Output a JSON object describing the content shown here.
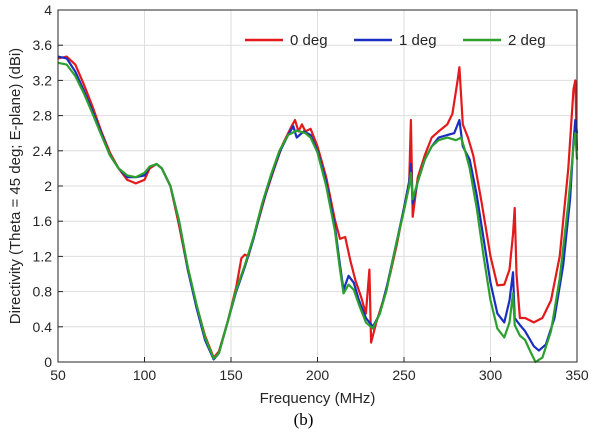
{
  "caption": "(b)",
  "chart_data": {
    "type": "line",
    "xlabel": "Frequency (MHz)",
    "ylabel": "Directivity (Theta = 45 deg; E-plane) (dBi)",
    "xlim": [
      50,
      350
    ],
    "ylim": [
      0,
      4
    ],
    "xticks": [
      50,
      100,
      150,
      200,
      250,
      300,
      350
    ],
    "yticks": [
      0,
      0.4,
      0.8,
      1.2,
      1.6,
      2,
      2.4,
      2.8,
      3.2,
      3.6,
      4
    ],
    "grid": true,
    "legend_position": "top-right",
    "series": [
      {
        "name": "0 deg",
        "color": "#e31a1c",
        "points": [
          [
            50,
            3.45
          ],
          [
            55,
            3.47
          ],
          [
            60,
            3.38
          ],
          [
            65,
            3.15
          ],
          [
            70,
            2.9
          ],
          [
            75,
            2.62
          ],
          [
            80,
            2.38
          ],
          [
            85,
            2.2
          ],
          [
            90,
            2.07
          ],
          [
            95,
            2.03
          ],
          [
            100,
            2.07
          ],
          [
            103,
            2.2
          ],
          [
            107,
            2.25
          ],
          [
            110,
            2.2
          ],
          [
            115,
            2.0
          ],
          [
            120,
            1.55
          ],
          [
            125,
            1.05
          ],
          [
            130,
            0.65
          ],
          [
            135,
            0.3
          ],
          [
            140,
            0.05
          ],
          [
            143,
            0.12
          ],
          [
            148,
            0.45
          ],
          [
            153,
            0.85
          ],
          [
            156,
            1.18
          ],
          [
            158,
            1.22
          ],
          [
            160,
            1.2
          ],
          [
            165,
            1.55
          ],
          [
            170,
            1.9
          ],
          [
            175,
            2.2
          ],
          [
            180,
            2.48
          ],
          [
            185,
            2.68
          ],
          [
            187,
            2.75
          ],
          [
            189,
            2.62
          ],
          [
            191,
            2.7
          ],
          [
            193,
            2.62
          ],
          [
            196,
            2.65
          ],
          [
            200,
            2.45
          ],
          [
            205,
            2.1
          ],
          [
            210,
            1.62
          ],
          [
            213,
            1.4
          ],
          [
            216,
            1.42
          ],
          [
            219,
            1.15
          ],
          [
            222,
            0.92
          ],
          [
            225,
            0.75
          ],
          [
            228,
            0.55
          ],
          [
            230,
            1.05
          ],
          [
            231,
            0.22
          ],
          [
            234,
            0.45
          ],
          [
            238,
            0.7
          ],
          [
            242,
            1.0
          ],
          [
            246,
            1.35
          ],
          [
            250,
            1.75
          ],
          [
            253,
            2.05
          ],
          [
            254,
            2.75
          ],
          [
            255,
            1.65
          ],
          [
            258,
            2.1
          ],
          [
            262,
            2.35
          ],
          [
            266,
            2.55
          ],
          [
            270,
            2.62
          ],
          [
            275,
            2.7
          ],
          [
            278,
            2.82
          ],
          [
            281,
            3.2
          ],
          [
            282,
            3.35
          ],
          [
            284,
            2.7
          ],
          [
            287,
            2.55
          ],
          [
            290,
            2.35
          ],
          [
            295,
            1.8
          ],
          [
            300,
            1.2
          ],
          [
            304,
            0.87
          ],
          [
            308,
            0.88
          ],
          [
            311,
            1.05
          ],
          [
            313,
            1.45
          ],
          [
            314,
            1.75
          ],
          [
            315,
            1.0
          ],
          [
            317,
            0.5
          ],
          [
            320,
            0.5
          ],
          [
            325,
            0.45
          ],
          [
            330,
            0.5
          ],
          [
            335,
            0.7
          ],
          [
            340,
            1.2
          ],
          [
            345,
            2.2
          ],
          [
            348,
            3.1
          ],
          [
            349,
            3.2
          ],
          [
            350,
            2.4
          ]
        ]
      },
      {
        "name": "1 deg",
        "color": "#1a2fbf",
        "points": [
          [
            50,
            3.47
          ],
          [
            55,
            3.45
          ],
          [
            60,
            3.3
          ],
          [
            65,
            3.08
          ],
          [
            70,
            2.85
          ],
          [
            75,
            2.6
          ],
          [
            80,
            2.35
          ],
          [
            85,
            2.2
          ],
          [
            90,
            2.1
          ],
          [
            95,
            2.1
          ],
          [
            100,
            2.12
          ],
          [
            103,
            2.22
          ],
          [
            107,
            2.25
          ],
          [
            110,
            2.2
          ],
          [
            115,
            2.0
          ],
          [
            120,
            1.6
          ],
          [
            125,
            1.05
          ],
          [
            130,
            0.62
          ],
          [
            135,
            0.25
          ],
          [
            140,
            0.03
          ],
          [
            143,
            0.1
          ],
          [
            148,
            0.45
          ],
          [
            153,
            0.8
          ],
          [
            158,
            1.08
          ],
          [
            163,
            1.4
          ],
          [
            168,
            1.78
          ],
          [
            173,
            2.1
          ],
          [
            178,
            2.38
          ],
          [
            183,
            2.58
          ],
          [
            186,
            2.68
          ],
          [
            188,
            2.55
          ],
          [
            192,
            2.62
          ],
          [
            196,
            2.58
          ],
          [
            200,
            2.4
          ],
          [
            205,
            2.05
          ],
          [
            210,
            1.55
          ],
          [
            213,
            1.1
          ],
          [
            215,
            0.82
          ],
          [
            218,
            0.98
          ],
          [
            221,
            0.9
          ],
          [
            224,
            0.7
          ],
          [
            228,
            0.5
          ],
          [
            232,
            0.4
          ],
          [
            236,
            0.55
          ],
          [
            240,
            0.85
          ],
          [
            245,
            1.3
          ],
          [
            250,
            1.75
          ],
          [
            253,
            2.05
          ],
          [
            254,
            2.25
          ],
          [
            255,
            1.8
          ],
          [
            258,
            2.05
          ],
          [
            262,
            2.3
          ],
          [
            266,
            2.45
          ],
          [
            270,
            2.55
          ],
          [
            275,
            2.58
          ],
          [
            279,
            2.6
          ],
          [
            282,
            2.75
          ],
          [
            284,
            2.45
          ],
          [
            288,
            2.3
          ],
          [
            292,
            1.9
          ],
          [
            296,
            1.4
          ],
          [
            300,
            0.9
          ],
          [
            304,
            0.55
          ],
          [
            308,
            0.45
          ],
          [
            311,
            0.7
          ],
          [
            313,
            1.02
          ],
          [
            314,
            0.5
          ],
          [
            317,
            0.42
          ],
          [
            320,
            0.35
          ],
          [
            325,
            0.18
          ],
          [
            328,
            0.13
          ],
          [
            332,
            0.2
          ],
          [
            337,
            0.5
          ],
          [
            342,
            1.1
          ],
          [
            346,
            1.85
          ],
          [
            348,
            2.5
          ],
          [
            349,
            2.75
          ],
          [
            350,
            2.6
          ]
        ]
      },
      {
        "name": "2 deg",
        "color": "#2ca02c",
        "points": [
          [
            50,
            3.4
          ],
          [
            55,
            3.38
          ],
          [
            60,
            3.25
          ],
          [
            65,
            3.05
          ],
          [
            70,
            2.82
          ],
          [
            75,
            2.58
          ],
          [
            80,
            2.35
          ],
          [
            85,
            2.2
          ],
          [
            90,
            2.12
          ],
          [
            95,
            2.1
          ],
          [
            100,
            2.15
          ],
          [
            103,
            2.22
          ],
          [
            107,
            2.25
          ],
          [
            110,
            2.2
          ],
          [
            115,
            2.0
          ],
          [
            120,
            1.6
          ],
          [
            125,
            1.08
          ],
          [
            130,
            0.66
          ],
          [
            135,
            0.28
          ],
          [
            140,
            0.04
          ],
          [
            143,
            0.1
          ],
          [
            148,
            0.45
          ],
          [
            153,
            0.82
          ],
          [
            158,
            1.1
          ],
          [
            163,
            1.42
          ],
          [
            168,
            1.8
          ],
          [
            173,
            2.12
          ],
          [
            178,
            2.4
          ],
          [
            183,
            2.58
          ],
          [
            188,
            2.63
          ],
          [
            193,
            2.6
          ],
          [
            196,
            2.55
          ],
          [
            200,
            2.38
          ],
          [
            205,
            2.0
          ],
          [
            210,
            1.5
          ],
          [
            213,
            1.05
          ],
          [
            215,
            0.78
          ],
          [
            218,
            0.88
          ],
          [
            221,
            0.82
          ],
          [
            224,
            0.65
          ],
          [
            228,
            0.45
          ],
          [
            232,
            0.38
          ],
          [
            236,
            0.55
          ],
          [
            240,
            0.82
          ],
          [
            245,
            1.3
          ],
          [
            250,
            1.72
          ],
          [
            253,
            2.0
          ],
          [
            254,
            2.15
          ],
          [
            255,
            1.85
          ],
          [
            258,
            2.05
          ],
          [
            262,
            2.3
          ],
          [
            266,
            2.45
          ],
          [
            270,
            2.52
          ],
          [
            275,
            2.55
          ],
          [
            280,
            2.52
          ],
          [
            283,
            2.55
          ],
          [
            285,
            2.42
          ],
          [
            288,
            2.2
          ],
          [
            292,
            1.75
          ],
          [
            296,
            1.2
          ],
          [
            300,
            0.7
          ],
          [
            304,
            0.38
          ],
          [
            308,
            0.28
          ],
          [
            311,
            0.45
          ],
          [
            313,
            0.78
          ],
          [
            314,
            0.42
          ],
          [
            317,
            0.3
          ],
          [
            320,
            0.25
          ],
          [
            323,
            0.12
          ],
          [
            326,
            0.0
          ],
          [
            330,
            0.05
          ],
          [
            335,
            0.35
          ],
          [
            340,
            0.95
          ],
          [
            345,
            1.8
          ],
          [
            348,
            2.45
          ],
          [
            349,
            2.6
          ],
          [
            350,
            2.3
          ]
        ]
      }
    ]
  }
}
